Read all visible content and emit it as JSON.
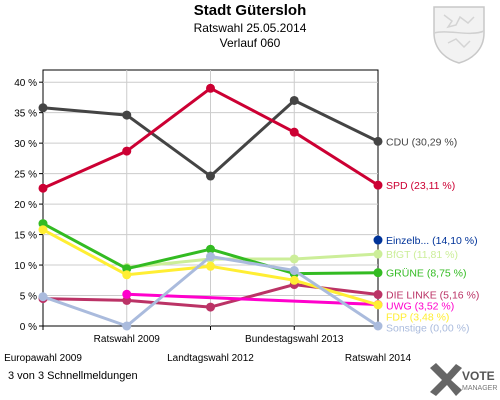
{
  "header": {
    "title": "Stadt Gütersloh",
    "subtitle": "Ratswahl 25.05.2014",
    "subtitle2": "Verlauf 060"
  },
  "footer": {
    "text": "3 von 3 Schnellmeldungen"
  },
  "logo": {
    "line1": "VOTE",
    "line2": "MANAGER"
  },
  "chart_data": {
    "type": "line",
    "x": [
      "Europawahl 2009",
      "Ratswahl 2009",
      "Landtagswahl 2012",
      "Bundestagswahl 2013",
      "Ratswahl 2014"
    ],
    "ylim": [
      0,
      42
    ],
    "yticks": [
      0,
      5,
      10,
      15,
      20,
      25,
      30,
      35,
      40
    ],
    "ytick_labels": [
      "0 %",
      "5 %",
      "10 %",
      "15 %",
      "20 %",
      "25 %",
      "30 %",
      "35 %",
      "40 %"
    ],
    "grid": true,
    "series": [
      {
        "name": "CDU",
        "label": "CDU (30,29 %)",
        "color": "#444444",
        "values": [
          35.8,
          34.6,
          24.6,
          37.0,
          30.29
        ]
      },
      {
        "name": "SPD",
        "label": "SPD (23,11 %)",
        "color": "#cc0033",
        "values": [
          22.6,
          28.7,
          39.0,
          31.8,
          23.11
        ]
      },
      {
        "name": "Einzelb...",
        "label": "Einzelb... (14,10 %)",
        "color": "#003399",
        "values": [
          null,
          null,
          null,
          null,
          14.1
        ]
      },
      {
        "name": "BfGT",
        "label": "BfGT (11,81 %)",
        "color": "#ccee99",
        "values": [
          null,
          9.6,
          11.0,
          11.0,
          11.81
        ]
      },
      {
        "name": "GRÜNE",
        "label": "GRÜNE (8,75 %)",
        "color": "#33bb22",
        "values": [
          16.8,
          9.4,
          12.6,
          8.6,
          8.75
        ]
      },
      {
        "name": "DIE LINKE",
        "label": "DIE LINKE (5,16 %)",
        "color": "#bb3366",
        "values": [
          4.5,
          4.2,
          3.1,
          6.8,
          5.16
        ]
      },
      {
        "name": "UWG",
        "label": "UWG (3,52 %)",
        "color": "#ff00cc",
        "values": [
          null,
          5.2,
          null,
          null,
          3.52
        ]
      },
      {
        "name": "FDP",
        "label": "FDP (3,48 %)",
        "color": "#ffee33",
        "values": [
          15.8,
          8.4,
          9.8,
          7.5,
          3.48
        ]
      },
      {
        "name": "Sonstige",
        "label": "Sonstige (0,00 %)",
        "color": "#aabbdd",
        "values": [
          4.8,
          0.0,
          11.4,
          9.1,
          0.0
        ]
      }
    ]
  }
}
